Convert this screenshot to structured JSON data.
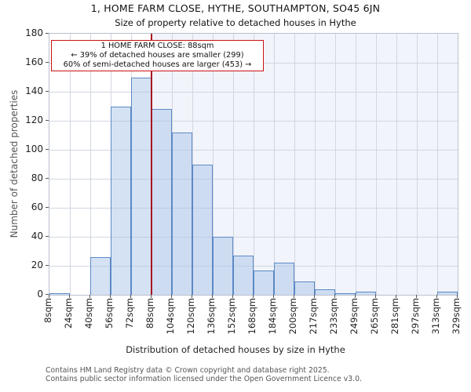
{
  "header": {
    "title": "1, HOME FARM CLOSE, HYTHE, SOUTHAMPTON, SO45 6JN",
    "subtitle": "Size of property relative to detached houses in Hythe"
  },
  "chart_data": {
    "type": "bar",
    "title": "1, HOME FARM CLOSE, HYTHE, SOUTHAMPTON, SO45 6JN",
    "subtitle": "Size of property relative to detached houses in Hythe",
    "xlabel": "Distribution of detached houses by size in Hythe",
    "ylabel": "Number of detached properties",
    "ylim": [
      0,
      180
    ],
    "ytick_step": 20,
    "yticks": [
      0,
      20,
      40,
      60,
      80,
      100,
      120,
      140,
      160,
      180
    ],
    "grid": true,
    "categories": [
      "8sqm",
      "24sqm",
      "40sqm",
      "56sqm",
      "72sqm",
      "88sqm",
      "104sqm",
      "120sqm",
      "136sqm",
      "152sqm",
      "168sqm",
      "184sqm",
      "200sqm",
      "217sqm",
      "233sqm",
      "249sqm",
      "265sqm",
      "281sqm",
      "297sqm",
      "313sqm",
      "329sqm"
    ],
    "values": [
      1,
      0,
      26,
      130,
      150,
      128,
      112,
      90,
      40,
      27,
      17,
      22,
      9,
      4,
      1,
      2,
      0,
      0,
      0,
      2
    ],
    "marker": {
      "value_label": "88sqm",
      "tick_index": 5
    },
    "annotation": {
      "line1": "1 HOME FARM CLOSE: 88sqm",
      "line2": "← 39% of detached houses are smaller (299)",
      "line3": "60% of semi-detached houses are larger (453) →"
    },
    "colors": {
      "bar_fill": "#d6e2f4",
      "bar_edge": "#5b8ac5",
      "marker_line": "#aa1122",
      "annotation_border": "#cc1111",
      "shade_fill": "#f2f4fb",
      "gridline": "#d2d6e0"
    }
  },
  "footer": {
    "line1": "Contains HM Land Registry data © Crown copyright and database right 2025.",
    "line2": "Contains public sector information licensed under the Open Government Licence v3.0."
  }
}
